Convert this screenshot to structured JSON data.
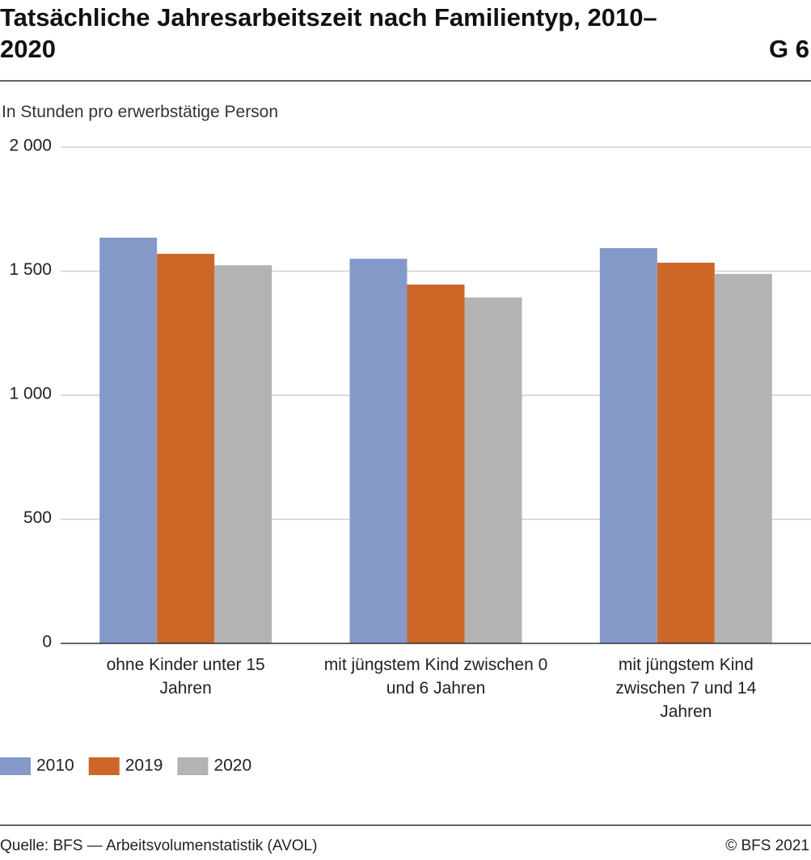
{
  "chart_data": {
    "type": "bar",
    "title": "Tatsächliche Jahresarbeitszeit nach Familientyp, 2010–2020",
    "figure_number": "G 6",
    "y_label": "In Stunden pro erwerbstätige Person",
    "categories": [
      "ohne Kinder unter 15 Jahren",
      "mit jüngstem Kind zwischen 0 und 6 Jahren",
      "mit jüngstem Kind zwischen 7 und 14 Jahren"
    ],
    "series": [
      {
        "name": "2010",
        "color": "#8599c9",
        "values": [
          1635,
          1550,
          1593
        ]
      },
      {
        "name": "2019",
        "color": "#cd6728",
        "values": [
          1570,
          1446,
          1534
        ]
      },
      {
        "name": "2020",
        "color": "#b3b3b3",
        "values": [
          1524,
          1394,
          1489
        ]
      }
    ],
    "ylim": [
      0,
      2000
    ],
    "yticks": [
      0,
      500,
      {
        "value": 1000,
        "label": "1 000"
      },
      {
        "value": 1500,
        "label": "1 500"
      },
      {
        "value": 2000,
        "label": "2 000"
      }
    ],
    "grid": true,
    "legend": "bottom-left",
    "source": "Quelle: BFS — Arbeitsvolumenstatistik (AVOL)",
    "copyright": "© BFS 2021"
  }
}
